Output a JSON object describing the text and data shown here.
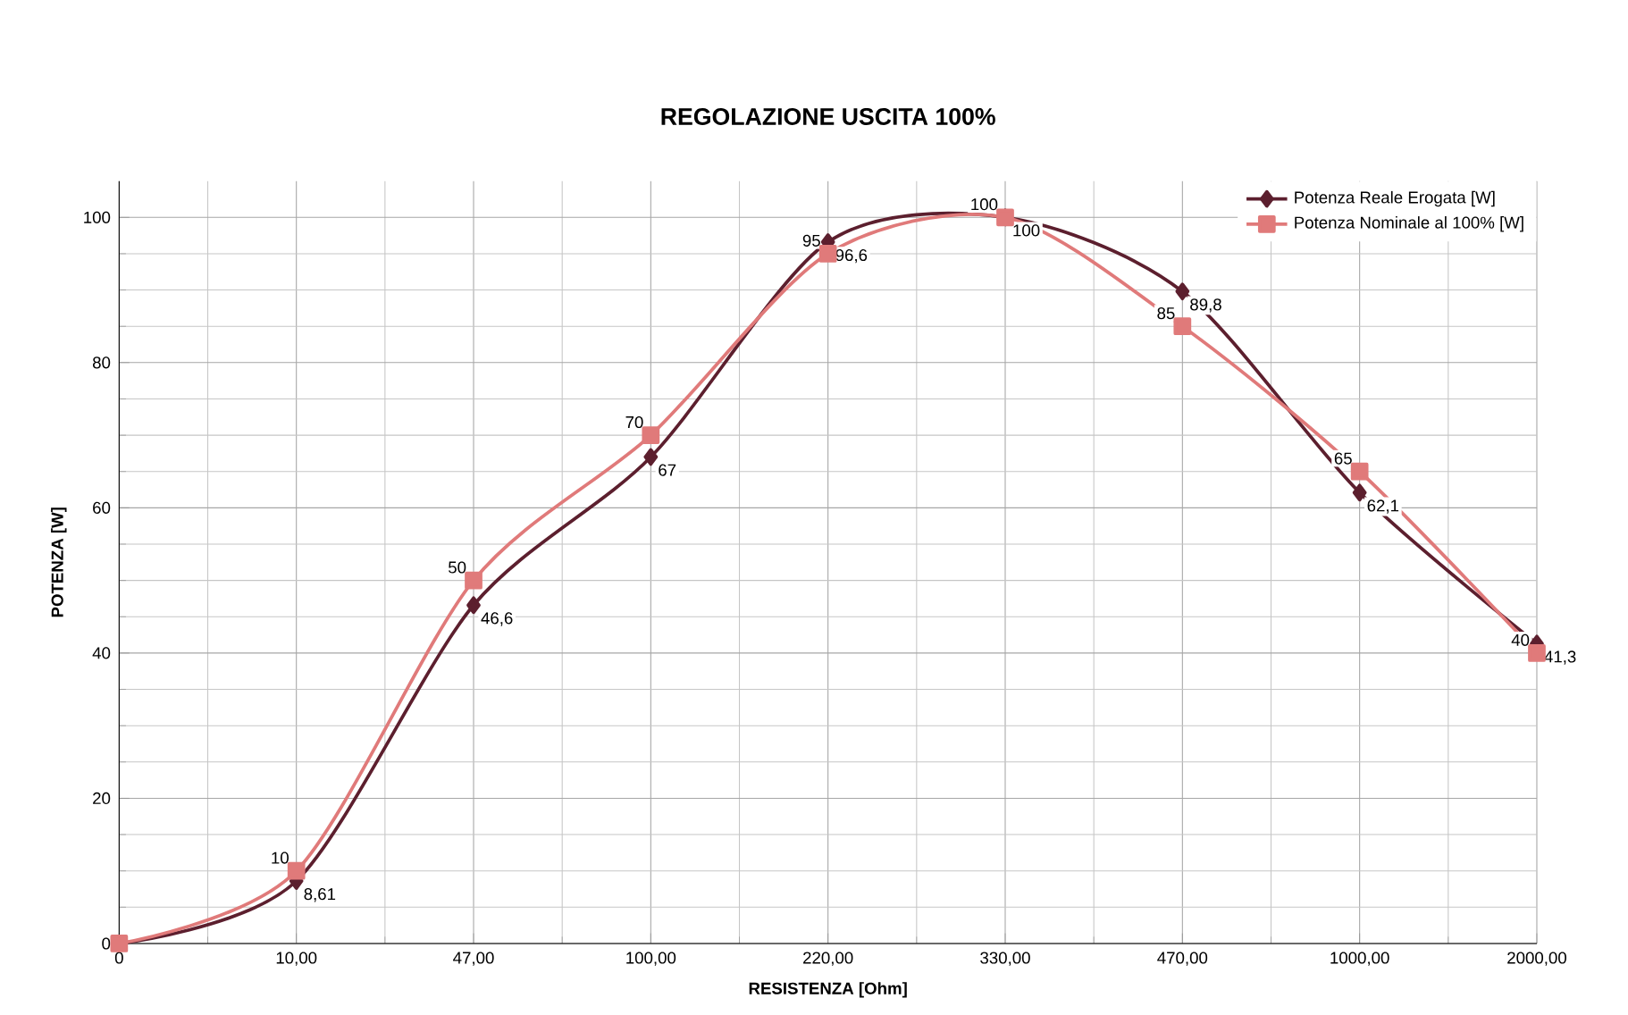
{
  "chart_data": {
    "type": "line",
    "title": "REGOLAZIONE USCITA 100%",
    "xlabel": "RESISTENZA [Ohm]",
    "ylabel": "POTENZA [W]",
    "categories": [
      "0",
      "10,00",
      "47,00",
      "100,00",
      "220,00",
      "330,00",
      "470,00",
      "1000,00",
      "2000,00"
    ],
    "series": [
      {
        "name": "Potenza Reale Erogata [W]",
        "color": "#5c1f2e",
        "marker": "diamond",
        "values": [
          0,
          8.61,
          46.6,
          67,
          96.6,
          100,
          89.8,
          62.1,
          41.3
        ],
        "value_labels": [
          null,
          "8,61",
          "46,6",
          "67",
          "96,6",
          "100",
          "89,8",
          "62,1",
          "41,3"
        ]
      },
      {
        "name": "Potenza Nominale al 100% [W]",
        "color": "#e07a7a",
        "marker": "square",
        "values": [
          0,
          10,
          50,
          70,
          95,
          100,
          85,
          65,
          40
        ],
        "value_labels": [
          null,
          "10",
          "50",
          "70",
          "95",
          "100",
          "85",
          "65",
          "40"
        ]
      }
    ],
    "ylim": [
      0,
      105
    ],
    "yticks": [
      0,
      20,
      40,
      60,
      80,
      100
    ],
    "grid": true,
    "legend": "top right",
    "line_style": "solid"
  }
}
